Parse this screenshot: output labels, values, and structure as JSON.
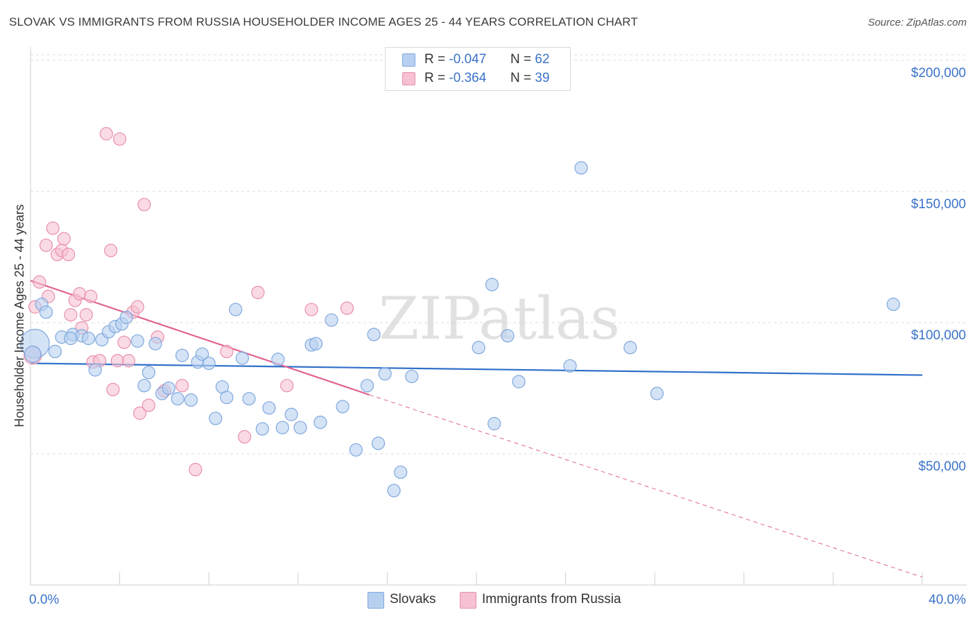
{
  "chart_data": {
    "type": "scatter",
    "title": "SLOVAK VS IMMIGRANTS FROM RUSSIA HOUSEHOLDER INCOME AGES 25 - 44 YEARS CORRELATION CHART",
    "source": "Source: ZipAtlas.com",
    "ylabel": "Householder Income Ages 25 - 44 years",
    "xlabel": "",
    "xlim": [
      0,
      40
    ],
    "ylim": [
      0,
      205000
    ],
    "x_tick_labels": [
      "0.0%",
      "40.0%"
    ],
    "y_ticks": [
      50000,
      100000,
      150000,
      200000
    ],
    "y_tick_labels": [
      "$50,000",
      "$100,000",
      "$150,000",
      "$200,000"
    ],
    "grid": true,
    "watermark": "ZIPatlas",
    "colors": {
      "slovaks_fill": "#b8d0f0",
      "slovaks_stroke": "#7fa8de",
      "slovaks_line": "#2f6fc9",
      "russia_fill": "#f6c1d2",
      "russia_stroke": "#e88fad",
      "russia_line": "#e0628f",
      "tick_label": "#3a72c9"
    },
    "legend": {
      "r_label": "R =",
      "n_label": "N =",
      "entries": [
        {
          "r": "-0.047",
          "n": "62"
        },
        {
          "r": "-0.364",
          "n": "39"
        }
      ]
    },
    "series": [
      {
        "name": "Slovaks",
        "trendline": {
          "x": [
            0,
            40
          ],
          "y": [
            84500,
            80000
          ]
        },
        "points": [
          [
            0.2,
            92000,
            2.3
          ],
          [
            0.1,
            88000,
            1.3
          ],
          [
            0.5,
            107000,
            1
          ],
          [
            0.7,
            104000,
            1
          ],
          [
            1.1,
            89000,
            1
          ],
          [
            1.4,
            94500,
            1
          ],
          [
            1.9,
            95500,
            1
          ],
          [
            2.3,
            95000,
            1
          ],
          [
            2.6,
            94000,
            1
          ],
          [
            1.8,
            94000,
            1
          ],
          [
            2.9,
            82000,
            1
          ],
          [
            3.2,
            93500,
            1
          ],
          [
            3.5,
            96500,
            1
          ],
          [
            3.8,
            98500,
            1
          ],
          [
            4.1,
            99500,
            1
          ],
          [
            4.3,
            102000,
            1
          ],
          [
            4.8,
            93000,
            1
          ],
          [
            5.1,
            76000,
            1
          ],
          [
            5.3,
            81000,
            1
          ],
          [
            5.6,
            92000,
            1
          ],
          [
            5.9,
            73000,
            1
          ],
          [
            6.2,
            75000,
            1
          ],
          [
            6.6,
            71000,
            1
          ],
          [
            6.8,
            87500,
            1
          ],
          [
            7.2,
            70500,
            1
          ],
          [
            7.5,
            85000,
            1
          ],
          [
            7.7,
            88000,
            1
          ],
          [
            8.0,
            84500,
            1
          ],
          [
            8.3,
            63500,
            1
          ],
          [
            8.6,
            75500,
            1
          ],
          [
            8.8,
            71500,
            1
          ],
          [
            9.2,
            105000,
            1
          ],
          [
            9.5,
            86500,
            1
          ],
          [
            9.8,
            71000,
            1
          ],
          [
            10.4,
            59500,
            1
          ],
          [
            10.7,
            67500,
            1
          ],
          [
            11.1,
            86000,
            1
          ],
          [
            11.3,
            60000,
            1
          ],
          [
            11.7,
            65000,
            1
          ],
          [
            12.1,
            60000,
            1
          ],
          [
            12.6,
            91500,
            1
          ],
          [
            12.8,
            92000,
            1
          ],
          [
            13.0,
            62000,
            1
          ],
          [
            13.5,
            101000,
            1
          ],
          [
            14.0,
            68000,
            1
          ],
          [
            14.6,
            51500,
            1
          ],
          [
            15.1,
            76000,
            1
          ],
          [
            15.4,
            95500,
            1
          ],
          [
            15.6,
            54000,
            1
          ],
          [
            15.9,
            80500,
            1
          ],
          [
            16.3,
            36000,
            1
          ],
          [
            16.6,
            43000,
            1
          ],
          [
            17.1,
            79500,
            1
          ],
          [
            20.1,
            90500,
            1
          ],
          [
            20.7,
            114500,
            1
          ],
          [
            20.8,
            61500,
            1
          ],
          [
            21.4,
            95000,
            1
          ],
          [
            21.9,
            77500,
            1
          ],
          [
            24.2,
            83500,
            1
          ],
          [
            24.7,
            159000,
            1
          ],
          [
            26.9,
            90500,
            1
          ],
          [
            28.1,
            73000,
            1
          ],
          [
            38.7,
            107000,
            1
          ]
        ]
      },
      {
        "name": "Immigrants from Russia",
        "trendline": {
          "x": [
            0,
            15.2
          ],
          "y": [
            116000,
            72500
          ]
        },
        "trendline_dashed": {
          "x": [
            15.2,
            40
          ],
          "y": [
            72500,
            3000
          ]
        },
        "points": [
          [
            0.1,
            87500,
            1.4
          ],
          [
            0.2,
            106000,
            1
          ],
          [
            0.4,
            115500,
            1
          ],
          [
            0.8,
            110000,
            1
          ],
          [
            0.7,
            129500,
            1
          ],
          [
            1.0,
            136000,
            1
          ],
          [
            1.2,
            126000,
            1
          ],
          [
            1.4,
            127500,
            1
          ],
          [
            1.5,
            132000,
            1
          ],
          [
            1.7,
            126000,
            1
          ],
          [
            1.8,
            103000,
            1
          ],
          [
            2.0,
            108500,
            1
          ],
          [
            2.2,
            111000,
            1
          ],
          [
            2.3,
            98000,
            1
          ],
          [
            2.5,
            103000,
            1
          ],
          [
            2.7,
            110000,
            1
          ],
          [
            2.8,
            85000,
            1
          ],
          [
            3.1,
            85500,
            1
          ],
          [
            3.4,
            172000,
            1
          ],
          [
            3.6,
            127500,
            1
          ],
          [
            3.7,
            74500,
            1
          ],
          [
            3.9,
            85500,
            1
          ],
          [
            4.0,
            170000,
            1
          ],
          [
            4.2,
            92500,
            1
          ],
          [
            4.4,
            85500,
            1
          ],
          [
            4.6,
            104000,
            1
          ],
          [
            4.8,
            106000,
            1
          ],
          [
            4.9,
            65500,
            1
          ],
          [
            5.1,
            145000,
            1
          ],
          [
            5.3,
            68500,
            1
          ],
          [
            5.7,
            94500,
            1
          ],
          [
            6.0,
            74000,
            1
          ],
          [
            6.8,
            76000,
            1
          ],
          [
            7.4,
            44000,
            1
          ],
          [
            8.8,
            89000,
            1
          ],
          [
            9.6,
            56500,
            1
          ],
          [
            10.2,
            111500,
            1
          ],
          [
            11.5,
            76000,
            1
          ],
          [
            12.6,
            105000,
            1
          ],
          [
            14.2,
            105500,
            1
          ]
        ]
      }
    ]
  }
}
